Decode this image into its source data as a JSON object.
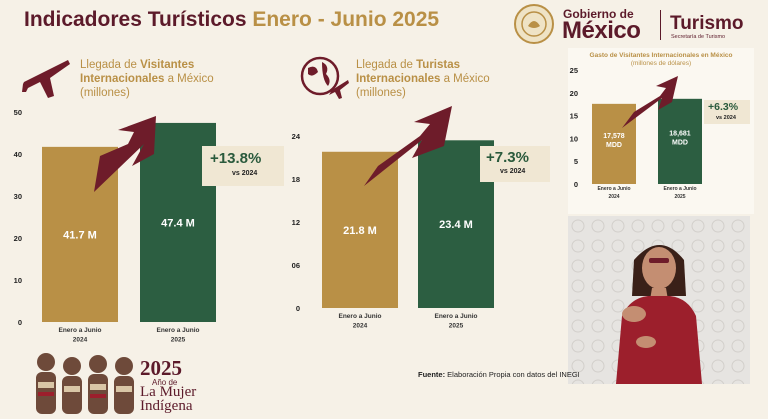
{
  "header": {
    "title_main": "Indicadores Turísticos",
    "title_accent": "Enero - Junio 2025",
    "gobierno_small": "Gobierno de",
    "gobierno_big": "México",
    "turismo": "Turismo",
    "secretaria": "Secretaría de Turismo"
  },
  "panel1": {
    "sub_pre": "Llegada de ",
    "sub_bold1": "Visitantes",
    "sub_bold2": "Internacionales",
    "sub_post": " a México",
    "sub_line3": "(millones)",
    "icon": "airplane-icon",
    "pct": "+13.8%",
    "vs": "vs 2024"
  },
  "panel2": {
    "sub_pre": "Llegada de ",
    "sub_bold1": "Turistas",
    "sub_bold2": "Internacionales",
    "sub_post": " a México",
    "sub_line3": "(millones)",
    "icon": "globe-plane-icon",
    "pct": "+7.3%",
    "vs": "vs 2024"
  },
  "panel3": {
    "title_line1": "Gasto de Visitantes Internacionales en México",
    "title_line2": "(millones de dólares)",
    "pct": "+6.3%",
    "vs": "vs 2024"
  },
  "chart_data": [
    {
      "type": "bar",
      "title": "Llegada de Visitantes Internacionales a México (millones)",
      "categories": [
        "Enero a Junio 2024",
        "Enero a Junio 2025"
      ],
      "values": [
        41.7,
        47.4
      ],
      "value_labels": [
        "41.7 M",
        "47.4 M"
      ],
      "yticks": [
        "0",
        "10",
        "20",
        "30",
        "40",
        "50"
      ],
      "ylim": [
        0,
        50
      ],
      "colors": [
        "#b99046",
        "#2c5e41"
      ]
    },
    {
      "type": "bar",
      "title": "Llegada de Turistas Internacionales a México (millones)",
      "categories": [
        "Enero a Junio 2024",
        "Enero a Junio 2025"
      ],
      "values": [
        21.8,
        23.4
      ],
      "value_labels": [
        "21.8 M",
        "23.4 M"
      ],
      "yticks": [
        "0",
        "06",
        "12",
        "18",
        "24"
      ],
      "ylim": [
        0,
        24
      ],
      "colors": [
        "#b99046",
        "#2c5e41"
      ]
    },
    {
      "type": "bar",
      "title": "Gasto de Visitantes Internacionales en México (millones de dólares)",
      "categories": [
        "Enero a Junio 2024",
        "Enero a Junio 2025"
      ],
      "values": [
        17.578,
        18.681
      ],
      "value_labels": [
        "17,578 MDD",
        "18,681 MDD"
      ],
      "yticks": [
        "0",
        "5",
        "10",
        "15",
        "20",
        "25"
      ],
      "ylim": [
        0,
        25
      ],
      "colors": [
        "#b99046",
        "#2c5e41"
      ]
    }
  ],
  "footer": {
    "fuente_label": "Fuente:",
    "fuente_text": " Elaboración Propia con datos del INEGI",
    "year": "2025",
    "mujer_line1": "Año de",
    "mujer_line2": "La Mujer",
    "mujer_line3": "Indígena"
  },
  "video": {
    "icon": "sign-language-interpreter"
  }
}
